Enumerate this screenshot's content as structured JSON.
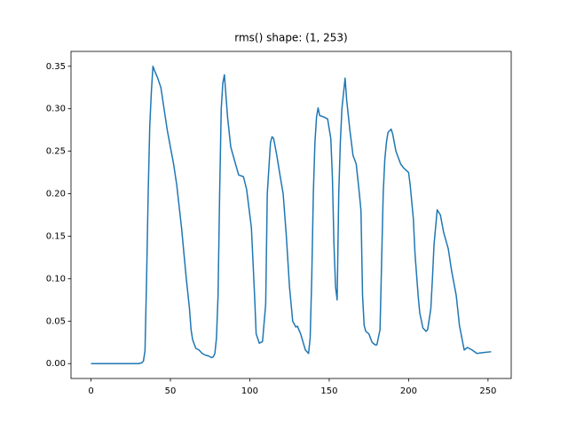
{
  "chart_data": {
    "type": "line",
    "title": "rms() shape: (1, 253)",
    "x": [
      0,
      10,
      20,
      30,
      32,
      33,
      34,
      35,
      36,
      37,
      38,
      39,
      40,
      42,
      44,
      46,
      48,
      50,
      52,
      54,
      57,
      60,
      62,
      63,
      64,
      66,
      68,
      70,
      72,
      74,
      76,
      77,
      78,
      79,
      80,
      81,
      82,
      83,
      84,
      85,
      86,
      88,
      91,
      93,
      96,
      98,
      100,
      101,
      103,
      104,
      106,
      108,
      110,
      111,
      113,
      114,
      115,
      117,
      119,
      121,
      123,
      125,
      127,
      129,
      130,
      132,
      135,
      137,
      138,
      139,
      140,
      141,
      142,
      143,
      144,
      147,
      149,
      151,
      152,
      153,
      154,
      155,
      156,
      157,
      158,
      160,
      161,
      163,
      165,
      167,
      169,
      170,
      171,
      172,
      173,
      175,
      177,
      179,
      180,
      182,
      183,
      184,
      185,
      186,
      187,
      189,
      190,
      192,
      195,
      197,
      200,
      201,
      203,
      204,
      206,
      207,
      209,
      211,
      212,
      214,
      215,
      216,
      218,
      220,
      222,
      225,
      227,
      230,
      232,
      235,
      237,
      240,
      243,
      247,
      252
    ],
    "series": [
      {
        "color": "#1f77b4",
        "values": [
          0,
          0,
          0,
          0,
          0.001,
          0.003,
          0.015,
          0.1,
          0.2,
          0.28,
          0.32,
          0.35,
          0.345,
          0.336,
          0.325,
          0.3,
          0.275,
          0.255,
          0.235,
          0.21,
          0.16,
          0.1,
          0.065,
          0.04,
          0.028,
          0.018,
          0.016,
          0.012,
          0.01,
          0.009,
          0.007,
          0.008,
          0.012,
          0.03,
          0.08,
          0.2,
          0.3,
          0.33,
          0.34,
          0.315,
          0.29,
          0.255,
          0.235,
          0.222,
          0.22,
          0.205,
          0.175,
          0.16,
          0.08,
          0.035,
          0.024,
          0.026,
          0.07,
          0.2,
          0.26,
          0.267,
          0.265,
          0.245,
          0.222,
          0.2,
          0.15,
          0.09,
          0.05,
          0.043,
          0.044,
          0.035,
          0.016,
          0.012,
          0.03,
          0.1,
          0.2,
          0.26,
          0.29,
          0.301,
          0.292,
          0.29,
          0.288,
          0.265,
          0.22,
          0.14,
          0.09,
          0.075,
          0.2,
          0.26,
          0.3,
          0.336,
          0.31,
          0.275,
          0.245,
          0.235,
          0.2,
          0.18,
          0.08,
          0.045,
          0.038,
          0.035,
          0.025,
          0.022,
          0.022,
          0.04,
          0.12,
          0.2,
          0.24,
          0.26,
          0.272,
          0.276,
          0.27,
          0.25,
          0.235,
          0.23,
          0.225,
          0.21,
          0.17,
          0.13,
          0.08,
          0.06,
          0.042,
          0.038,
          0.04,
          0.065,
          0.1,
          0.14,
          0.181,
          0.175,
          0.155,
          0.135,
          0.11,
          0.08,
          0.045,
          0.016,
          0.019,
          0.016,
          0.012,
          0.013,
          0.014
        ]
      }
    ],
    "xlim": [
      -12.6,
      264.6
    ],
    "xticks": [
      0,
      50,
      100,
      150,
      200,
      250
    ],
    "ylim": [
      -0.0175,
      0.3675
    ],
    "yticks": [
      {
        "value": 0,
        "label": "0.00"
      },
      0.05,
      {
        "value": 0.1,
        "label": "0.10"
      },
      0.15,
      {
        "value": 0.2,
        "label": "0.20"
      },
      0.25,
      {
        "value": 0.3,
        "label": "0.30"
      },
      0.35
    ]
  }
}
